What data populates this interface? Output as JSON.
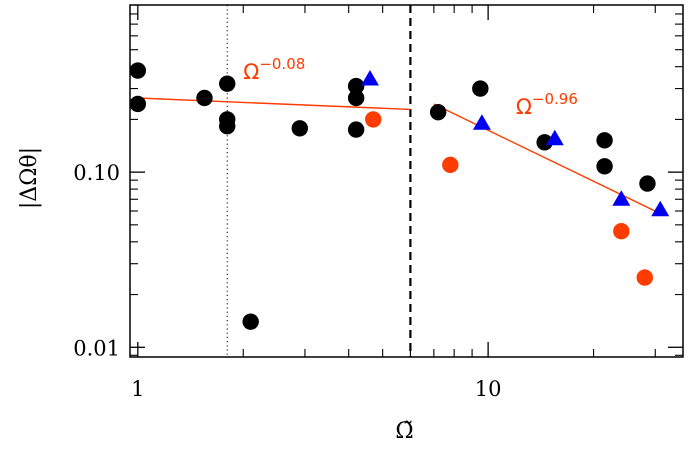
{
  "chart_data": {
    "type": "scatter",
    "xscale": "log",
    "yscale": "log",
    "xlim": [
      0.95,
      36
    ],
    "ylim": [
      0.0088,
      0.9
    ],
    "xlabel": "Ω̃",
    "ylabel": "|ΔΩθ|",
    "xticks": [
      {
        "value": 1,
        "label": "1"
      },
      {
        "value": 10,
        "label": "10"
      }
    ],
    "yticks": [
      {
        "value": 0.01,
        "label": "0.01"
      },
      {
        "value": 0.1,
        "label": "0.10"
      }
    ],
    "grid": false,
    "colors": {
      "black": "#000000",
      "blue": "#0000ee",
      "orange": "#ff3c00",
      "fit": "#ff3c00"
    },
    "series": [
      {
        "marker": "circle",
        "color": "#000000",
        "points": [
          {
            "x": 1.0,
            "y": 0.38
          },
          {
            "x": 1.0,
            "y": 0.245
          },
          {
            "x": 1.55,
            "y": 0.265
          },
          {
            "x": 1.8,
            "y": 0.32
          },
          {
            "x": 1.8,
            "y": 0.2
          },
          {
            "x": 1.8,
            "y": 0.183
          },
          {
            "x": 2.1,
            "y": 0.014
          },
          {
            "x": 2.9,
            "y": 0.178
          },
          {
            "x": 4.2,
            "y": 0.31
          },
          {
            "x": 4.2,
            "y": 0.265
          },
          {
            "x": 4.2,
            "y": 0.175
          },
          {
            "x": 7.2,
            "y": 0.22
          },
          {
            "x": 9.5,
            "y": 0.3
          },
          {
            "x": 14.5,
            "y": 0.148
          },
          {
            "x": 21.5,
            "y": 0.152
          },
          {
            "x": 21.5,
            "y": 0.108
          },
          {
            "x": 28.5,
            "y": 0.086
          }
        ]
      },
      {
        "marker": "triangle",
        "color": "#0000ee",
        "points": [
          {
            "x": 4.6,
            "y": 0.34
          },
          {
            "x": 9.6,
            "y": 0.19
          },
          {
            "x": 15.5,
            "y": 0.155
          },
          {
            "x": 24.0,
            "y": 0.07
          },
          {
            "x": 31.0,
            "y": 0.061
          }
        ]
      },
      {
        "marker": "circle",
        "color": "#ff3c00",
        "points": [
          {
            "x": 4.7,
            "y": 0.2
          },
          {
            "x": 7.8,
            "y": 0.11
          },
          {
            "x": 24.0,
            "y": 0.046
          },
          {
            "x": 28.0,
            "y": 0.025
          }
        ]
      }
    ],
    "fits": [
      {
        "x": [
          1.0,
          6.0
        ],
        "y": [
          0.265,
          0.228
        ],
        "color": "#ff3c00"
      },
      {
        "x": [
          7.0,
          31.0
        ],
        "y": [
          0.245,
          0.058
        ],
        "color": "#ff3c00"
      }
    ],
    "vlines": [
      {
        "x": 1.8,
        "style": "dotted"
      },
      {
        "x": 6.0,
        "style": "dashed"
      }
    ],
    "annotations": [
      {
        "base": "Ω",
        "exponent": "−0.08",
        "x": 2.0,
        "y": 0.34
      },
      {
        "base": "Ω",
        "exponent": "−0.96",
        "x": 12.0,
        "y": 0.215
      }
    ]
  }
}
